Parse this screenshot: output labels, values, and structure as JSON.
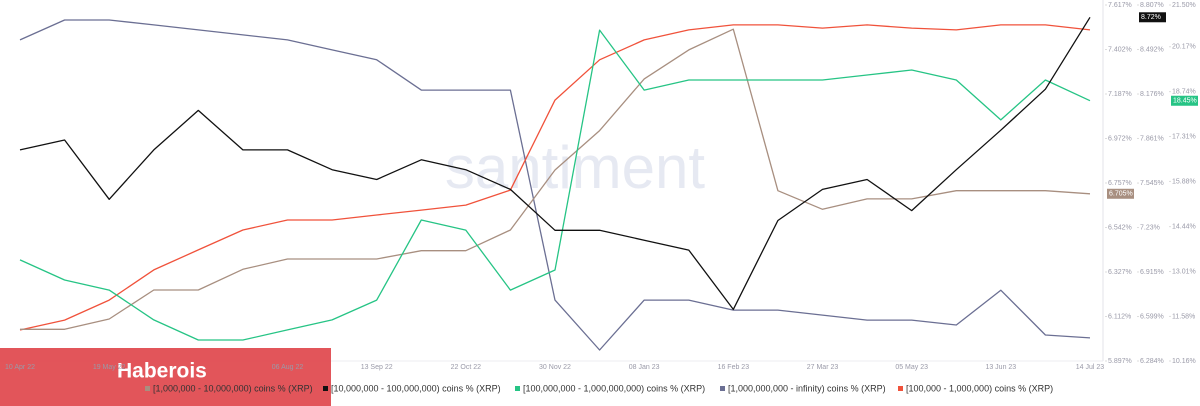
{
  "chart_data": {
    "type": "line",
    "watermark": "santiment",
    "overlay_label": "Haberois",
    "categories": [
      "10 Apr 22",
      null,
      "19 May 22",
      null,
      null,
      null,
      "06 Aug 22",
      null,
      "13 Sep 22",
      null,
      "22 Oct 22",
      null,
      "30 Nov 22",
      null,
      "08 Jan 23",
      null,
      "16 Feb 23",
      null,
      "27 Mar 23",
      null,
      "05 May 23",
      null,
      "13 Jun 23",
      null,
      "14 Jul 23"
    ],
    "series": [
      {
        "name": "[1,000,000 - 10,000,000) coins % (XRP)",
        "color": "#a88f80",
        "values": [
          6.05,
          6.05,
          6.1,
          6.24,
          6.24,
          6.34,
          6.39,
          6.39,
          6.39,
          6.43,
          6.43,
          6.53,
          6.82,
          7.01,
          7.26,
          7.4,
          7.5,
          6.72,
          6.63,
          6.68,
          6.68,
          6.72,
          6.72,
          6.72,
          6.705
        ],
        "value_labels": [
          null,
          null,
          null,
          null,
          null,
          null,
          null,
          null,
          null,
          null,
          null,
          null,
          null,
          null,
          null,
          null,
          null,
          null,
          null,
          null,
          null,
          null,
          null,
          null,
          "6.705%"
        ],
        "ylim": [
          5.897,
          7.617
        ],
        "yticks": [
          {
            "value": 7.617,
            "label": "7.617%"
          },
          {
            "value": 7.402,
            "label": "7.402%"
          },
          {
            "value": 7.187,
            "label": "7.187%"
          },
          {
            "value": 6.972,
            "label": "6.972%"
          },
          {
            "value": 6.757,
            "label": "6.757%"
          },
          {
            "value": 6.542,
            "label": "6.542%"
          },
          {
            "value": 6.327,
            "label": "6.327%"
          },
          {
            "value": 6.112,
            "label": "6.112%"
          },
          {
            "value": 5.897,
            "label": "5.897%"
          }
        ]
      },
      {
        "name": "[10,000,000 - 100,000,000) coins % (XRP)",
        "color": "#111111",
        "values": [
          7.78,
          7.85,
          7.43,
          7.78,
          8.06,
          7.78,
          7.78,
          7.64,
          7.57,
          7.71,
          7.64,
          7.5,
          7.21,
          7.21,
          7.14,
          7.07,
          6.65,
          7.28,
          7.5,
          7.57,
          7.35,
          7.64,
          7.92,
          8.21,
          8.72
        ],
        "value_labels": [
          null,
          null,
          null,
          null,
          null,
          null,
          null,
          null,
          null,
          null,
          null,
          null,
          null,
          null,
          null,
          null,
          null,
          null,
          null,
          null,
          null,
          null,
          null,
          null,
          "8.72%"
        ],
        "ylim": [
          6.284,
          8.807
        ],
        "yticks": [
          {
            "value": 8.807,
            "label": "8.807%"
          },
          {
            "value": 8.492,
            "label": "8.492%"
          },
          {
            "value": 8.176,
            "label": "8.176%"
          },
          {
            "value": 7.861,
            "label": "7.861%"
          },
          {
            "value": 7.545,
            "label": "7.545%"
          },
          {
            "value": 7.23,
            "label": "7.23%"
          },
          {
            "value": 6.915,
            "label": "6.915%"
          },
          {
            "value": 6.599,
            "label": "6.599%"
          },
          {
            "value": 6.284,
            "label": "6.284%"
          }
        ]
      },
      {
        "name": "[100,000,000 - 1,000,000,000) coins % (XRP)",
        "color": "#26c485",
        "values": [
          13.38,
          12.74,
          12.42,
          11.47,
          10.83,
          10.83,
          11.15,
          11.47,
          12.1,
          14.65,
          14.33,
          12.42,
          13.06,
          20.7,
          18.79,
          19.11,
          19.11,
          19.11,
          19.11,
          19.27,
          19.43,
          19.11,
          17.84,
          19.11,
          18.45
        ],
        "value_labels": [
          null,
          null,
          null,
          null,
          null,
          null,
          null,
          null,
          null,
          null,
          null,
          null,
          null,
          null,
          null,
          null,
          null,
          null,
          null,
          null,
          null,
          null,
          null,
          null,
          "18.45%"
        ],
        "ylim": [
          10.16,
          21.5
        ],
        "yticks": [
          {
            "value": 21.5,
            "label": "21.50%"
          },
          {
            "value": 20.17,
            "label": "20.17%"
          },
          {
            "value": 18.74,
            "label": "18.74%"
          },
          {
            "value": 17.31,
            "label": "17.31%"
          },
          {
            "value": 15.88,
            "label": "15.88%"
          },
          {
            "value": 14.44,
            "label": "14.44%"
          },
          {
            "value": 13.01,
            "label": "13.01%"
          },
          {
            "value": 11.58,
            "label": "11.58%"
          },
          {
            "value": 10.16,
            "label": "10.16%"
          }
        ]
      },
      {
        "name": "[1,000,000,000 - infinity) coins % (XRP)",
        "color": "#6b6f93",
        "values": [
          90.2,
          95.8,
          95.8,
          94.4,
          93.0,
          91.6,
          90.2,
          87.4,
          84.6,
          76.1,
          76.1,
          76.1,
          17.1,
          3.1,
          17.1,
          17.1,
          14.3,
          14.3,
          12.9,
          11.5,
          11.5,
          10.1,
          19.9,
          7.3,
          6.5
        ],
        "ylim": [
          0,
          100
        ]
      },
      {
        "name": "[100,000 - 1,000,000) coins % (XRP)",
        "color": "#f0523b",
        "values": [
          8.7,
          11.5,
          17.1,
          25.6,
          31.2,
          36.8,
          39.6,
          39.6,
          41.0,
          42.4,
          43.8,
          48.0,
          73.3,
          84.6,
          90.2,
          93.0,
          94.4,
          94.4,
          93.5,
          94.4,
          93.5,
          93.0,
          94.4,
          94.4,
          93.0
        ],
        "ylim": [
          0,
          100
        ]
      }
    ]
  }
}
